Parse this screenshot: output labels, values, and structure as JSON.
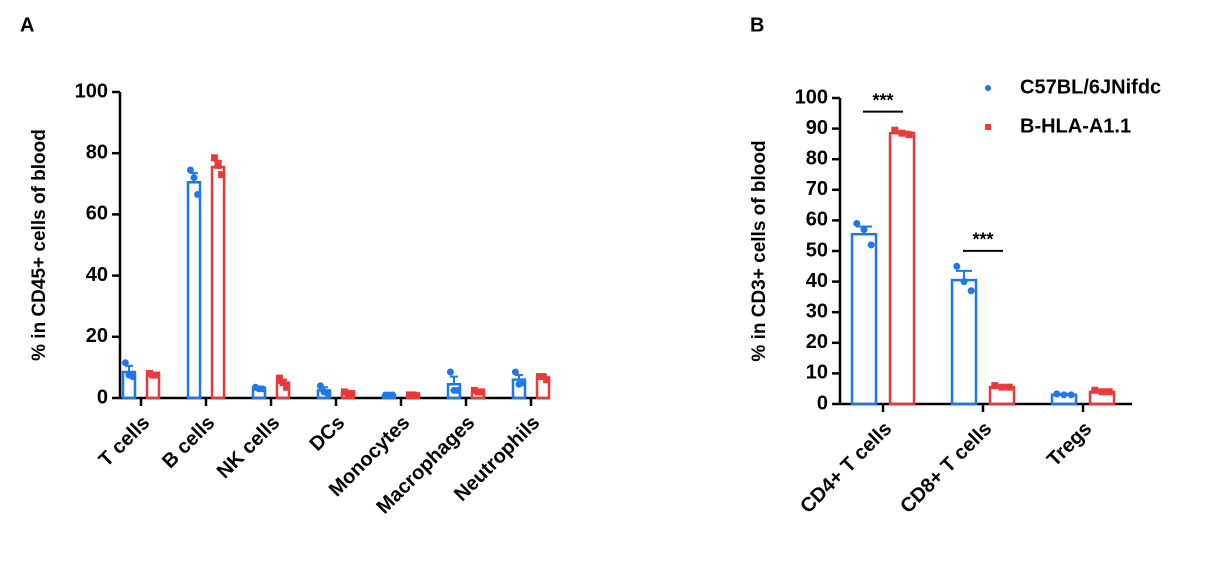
{
  "chart_data": [
    {
      "type": "bar",
      "panel": "A",
      "ylabel": "% in CD45+ cells of blood",
      "categories": [
        "T cells",
        "B cells",
        "NK cells",
        "DCs",
        "Monocytes",
        "Macrophages",
        "Neutrophils"
      ],
      "series": [
        {
          "name": "C57BL/6JNifdc",
          "color": "#1f77e8",
          "marker": "circle",
          "values": [
            8.5,
            70.5,
            3.2,
            2.5,
            0.8,
            4.5,
            6.0
          ],
          "errors": [
            2,
            3,
            0.5,
            1,
            0.1,
            2.5,
            1.5
          ],
          "points": [
            [
              11.5,
              7.5,
              7
            ],
            [
              74.5,
              72,
              66.5
            ],
            [
              3.5,
              3,
              3
            ],
            [
              4,
              2,
              1.5
            ],
            [
              1,
              1,
              1
            ],
            [
              8.5,
              2.5,
              2.5
            ],
            [
              8.5,
              4.5,
              5
            ]
          ]
        },
        {
          "name": "B-HLA-A1.1",
          "color": "#e8393b",
          "marker": "square",
          "values": [
            7.5,
            75.5,
            5.0,
            1.5,
            0.8,
            2.0,
            6.5
          ],
          "errors": [
            0.4,
            2,
            1,
            0.3,
            0.2,
            0.3,
            0.8
          ],
          "points": [
            [
              8,
              7.5,
              7.5
            ],
            [
              78.5,
              76,
              73
            ],
            [
              6.5,
              5,
              3.5
            ],
            [
              2,
              1.5,
              1.5
            ],
            [
              1,
              1,
              0.8
            ],
            [
              2.5,
              2,
              2
            ],
            [
              7,
              7,
              6
            ]
          ]
        }
      ],
      "ylim": [
        0,
        100
      ],
      "yticks": [
        0,
        20,
        40,
        60,
        80,
        100
      ],
      "legend": false
    },
    {
      "type": "bar",
      "panel": "B",
      "ylabel": "% in CD3+ cells of blood",
      "categories": [
        "CD4+ T cells",
        "CD8+ T cells",
        "Tregs"
      ],
      "series": [
        {
          "name": "C57BL/6JNifdc",
          "color": "#1f77e8",
          "marker": "circle",
          "values": [
            55.5,
            40.5,
            3
          ],
          "errors": [
            2.5,
            3,
            0.3
          ],
          "points": [
            [
              59,
              57,
              52
            ],
            [
              45,
              40,
              37
            ],
            [
              3.3,
              3,
              3
            ]
          ]
        },
        {
          "name": "B-HLA-A1.1",
          "color": "#e8393b",
          "marker": "square",
          "values": [
            88.5,
            5.5,
            4
          ],
          "errors": [
            0.5,
            0.3,
            0.3
          ],
          "points": [
            [
              89.5,
              88.5,
              88
            ],
            [
              6,
              5.5,
              5.5
            ],
            [
              4.5,
              4,
              4
            ]
          ]
        }
      ],
      "significance": [
        "***",
        "***",
        null
      ],
      "ylim": [
        0,
        100
      ],
      "yticks": [
        0,
        10,
        20,
        30,
        40,
        50,
        60,
        70,
        80,
        90,
        100
      ],
      "legend": "top-right"
    }
  ]
}
